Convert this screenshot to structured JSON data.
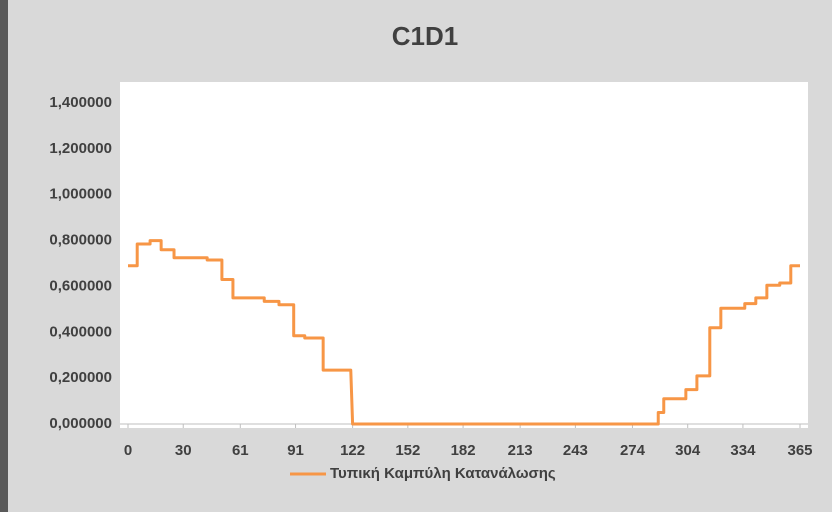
{
  "chart_data": {
    "type": "line",
    "title": "C1D1",
    "x": [
      0,
      5,
      5,
      12,
      12,
      18,
      18,
      25,
      25,
      43,
      43,
      51,
      51,
      57,
      57,
      74,
      74,
      82,
      82,
      90,
      90,
      96,
      96,
      106,
      106,
      121,
      122,
      288,
      288,
      291,
      291,
      303,
      303,
      309,
      309,
      316,
      316,
      322,
      322,
      335,
      335,
      341,
      341,
      347,
      347,
      354,
      354,
      360,
      360,
      365
    ],
    "series": [
      {
        "name": "Τυπική Καμπύλη Κατανάλωσης",
        "color": "#f79646",
        "values": [
          0.69,
          0.69,
          0.785,
          0.785,
          0.8,
          0.8,
          0.76,
          0.76,
          0.725,
          0.725,
          0.715,
          0.715,
          0.63,
          0.63,
          0.55,
          0.55,
          0.535,
          0.535,
          0.52,
          0.52,
          0.385,
          0.385,
          0.375,
          0.375,
          0.235,
          0.235,
          0,
          0,
          0.05,
          0.05,
          0.11,
          0.11,
          0.15,
          0.15,
          0.21,
          0.21,
          0.42,
          0.42,
          0.505,
          0.505,
          0.525,
          0.525,
          0.55,
          0.55,
          0.605,
          0.605,
          0.615,
          0.615,
          0.69,
          0.69
        ]
      }
    ],
    "xlim": [
      0,
      365
    ],
    "xticks": [
      0,
      30,
      61,
      91,
      122,
      152,
      182,
      213,
      243,
      274,
      304,
      334,
      365
    ],
    "ylim": [
      0,
      1.4
    ],
    "yticks": [
      {
        "value": 0,
        "label": "0,000000"
      },
      {
        "value": 0.2,
        "label": "0,200000"
      },
      {
        "value": 0.4,
        "label": "0,400000"
      },
      {
        "value": 0.6,
        "label": "0,600000"
      },
      {
        "value": 0.8,
        "label": "0,800000"
      },
      {
        "value": 1.0,
        "label": "1,000000"
      },
      {
        "value": 1.2,
        "label": "1,200000"
      },
      {
        "value": 1.4,
        "label": "1,400000"
      }
    ],
    "grid": false,
    "legend": "bottom"
  }
}
